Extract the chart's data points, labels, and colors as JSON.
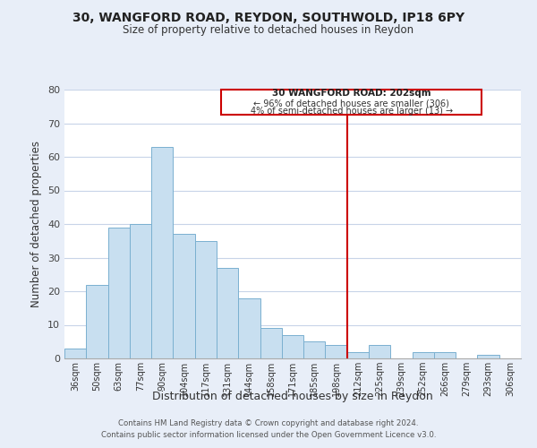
{
  "title1": "30, WANGFORD ROAD, REYDON, SOUTHWOLD, IP18 6PY",
  "title2": "Size of property relative to detached houses in Reydon",
  "xlabel": "Distribution of detached houses by size in Reydon",
  "ylabel": "Number of detached properties",
  "bar_labels": [
    "36sqm",
    "50sqm",
    "63sqm",
    "77sqm",
    "90sqm",
    "104sqm",
    "117sqm",
    "131sqm",
    "144sqm",
    "158sqm",
    "171sqm",
    "185sqm",
    "198sqm",
    "212sqm",
    "225sqm",
    "239sqm",
    "252sqm",
    "266sqm",
    "279sqm",
    "293sqm",
    "306sqm"
  ],
  "bar_heights": [
    3,
    22,
    39,
    40,
    63,
    37,
    35,
    27,
    18,
    9,
    7,
    5,
    4,
    2,
    4,
    0,
    2,
    2,
    0,
    1,
    0
  ],
  "bar_color": "#c8dff0",
  "bar_edge_color": "#7ab0d0",
  "vline_color": "#cc0000",
  "annotation_title": "30 WANGFORD ROAD: 202sqm",
  "annotation_line1": "← 96% of detached houses are smaller (306)",
  "annotation_line2": "4% of semi-detached houses are larger (13) →",
  "annotation_box_color": "#ffffff",
  "annotation_box_edge": "#cc0000",
  "ylim": [
    0,
    80
  ],
  "yticks": [
    0,
    10,
    20,
    30,
    40,
    50,
    60,
    70,
    80
  ],
  "footer1": "Contains HM Land Registry data © Crown copyright and database right 2024.",
  "footer2": "Contains public sector information licensed under the Open Government Licence v3.0.",
  "bg_color": "#e8eef8",
  "plot_bg_color": "#ffffff",
  "grid_color": "#c8d4e8"
}
